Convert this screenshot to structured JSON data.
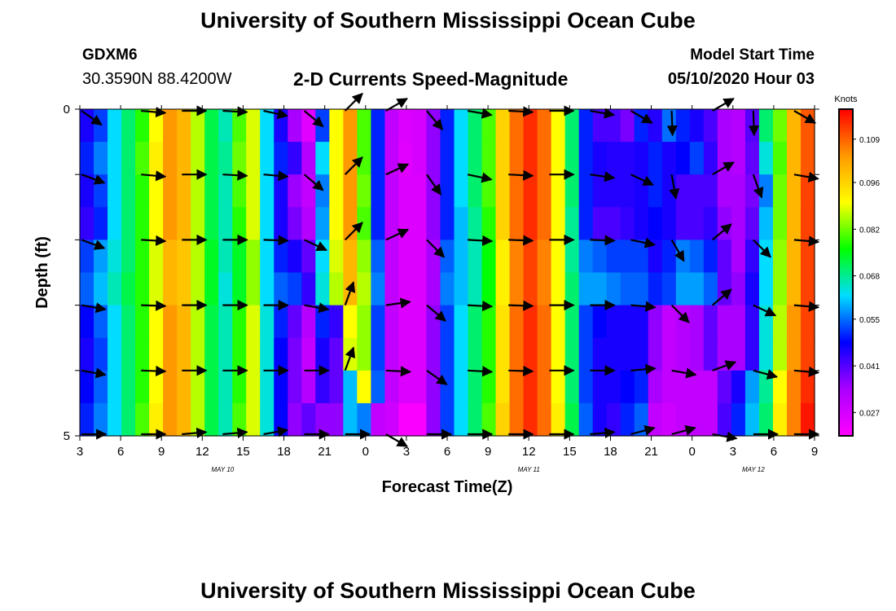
{
  "header": {
    "title": "University of Southern Mississippi Ocean Cube",
    "station_id": "GDXM6",
    "coordinates": "30.3590N 88.4200W",
    "subtitle": "2-D Currents Speed-Magnitude",
    "model_start_label": "Model Start Time",
    "model_start_value": "05/10/2020 Hour 03"
  },
  "footer": {
    "title": "University of Southern Mississippi Ocean Cube"
  },
  "chart_data": {
    "type": "heatmap",
    "title": "2-D Currents Speed-Magnitude",
    "xlabel": "Forecast Time(Z)",
    "ylabel": "Depth (ft)",
    "x_hours_since_start": {
      "min": 0,
      "max": 54
    },
    "ylim": [
      0,
      5
    ],
    "y_tick_labels": [
      {
        "value": 0,
        "label": "0"
      },
      {
        "value": 5,
        "label": "5"
      }
    ],
    "y_minor_ticks": [
      1,
      2,
      3,
      4
    ],
    "x_ticks": [
      {
        "hour": 0,
        "label": "3"
      },
      {
        "hour": 3,
        "label": "6"
      },
      {
        "hour": 6,
        "label": "9"
      },
      {
        "hour": 9,
        "label": "12"
      },
      {
        "hour": 12,
        "label": "15"
      },
      {
        "hour": 15,
        "label": "18"
      },
      {
        "hour": 18,
        "label": "21"
      },
      {
        "hour": 21,
        "label": "0"
      },
      {
        "hour": 24,
        "label": "3"
      },
      {
        "hour": 27,
        "label": "6"
      },
      {
        "hour": 30,
        "label": "9"
      },
      {
        "hour": 33,
        "label": "12"
      },
      {
        "hour": 36,
        "label": "15"
      },
      {
        "hour": 39,
        "label": "18"
      },
      {
        "hour": 42,
        "label": "21"
      },
      {
        "hour": 45,
        "label": "0"
      },
      {
        "hour": 48,
        "label": "3"
      },
      {
        "hour": 51,
        "label": "6"
      },
      {
        "hour": 54,
        "label": "9"
      }
    ],
    "date_labels": [
      {
        "hour": 10.5,
        "label": "MAY 10"
      },
      {
        "hour": 33,
        "label": "MAY 11"
      },
      {
        "hour": 49.5,
        "label": "MAY 12"
      }
    ],
    "colorbar": {
      "label": "Knots",
      "min": 0.02,
      "max": 0.118,
      "ticks": [
        0.027,
        0.041,
        0.055,
        0.068,
        0.082,
        0.096,
        0.109
      ],
      "tick_labels": [
        "0.027",
        "0.041",
        "0.055",
        "0.068",
        "0.082",
        "0.096",
        "0.109"
      ],
      "colors": [
        "#ff00ff",
        "#aa00ff",
        "#0000ff",
        "#00ddff",
        "#00ff00",
        "#ffff00",
        "#ff9900",
        "#ff0000"
      ]
    },
    "depth_rows": [
      0.25,
      0.75,
      1.25,
      1.75,
      2.25,
      2.75,
      3.25,
      3.75,
      4.25,
      4.75
    ],
    "speed_grid": [
      [
        0.046,
        0.052,
        0.062,
        0.07,
        0.078,
        0.09,
        0.104,
        0.1,
        0.086,
        0.072,
        0.066,
        0.08,
        0.088,
        0.062,
        0.046,
        0.034,
        0.025,
        0.052,
        0.09,
        0.104,
        0.08,
        0.05,
        0.03,
        0.026,
        0.027,
        0.036,
        0.05,
        0.062,
        0.07,
        0.08,
        0.096,
        0.108,
        0.114,
        0.108,
        0.09,
        0.07,
        0.05,
        0.042,
        0.042,
        0.038,
        0.05,
        0.045,
        0.055,
        0.05,
        0.046,
        0.042,
        0.034,
        0.032,
        0.041,
        0.07,
        0.082,
        0.1,
        0.11
      ],
      [
        0.05,
        0.056,
        0.062,
        0.07,
        0.08,
        0.092,
        0.104,
        0.1,
        0.086,
        0.072,
        0.068,
        0.082,
        0.088,
        0.062,
        0.05,
        0.044,
        0.032,
        0.062,
        0.09,
        0.104,
        0.08,
        0.05,
        0.03,
        0.025,
        0.027,
        0.036,
        0.05,
        0.062,
        0.07,
        0.08,
        0.096,
        0.108,
        0.114,
        0.108,
        0.09,
        0.07,
        0.05,
        0.046,
        0.045,
        0.045,
        0.046,
        0.05,
        0.046,
        0.048,
        0.052,
        0.044,
        0.034,
        0.032,
        0.04,
        0.064,
        0.08,
        0.1,
        0.11
      ],
      [
        0.046,
        0.052,
        0.062,
        0.07,
        0.078,
        0.09,
        0.104,
        0.1,
        0.086,
        0.072,
        0.066,
        0.08,
        0.088,
        0.062,
        0.046,
        0.035,
        0.03,
        0.056,
        0.09,
        0.104,
        0.082,
        0.05,
        0.03,
        0.026,
        0.026,
        0.036,
        0.05,
        0.062,
        0.07,
        0.08,
        0.096,
        0.108,
        0.114,
        0.108,
        0.09,
        0.07,
        0.05,
        0.045,
        0.045,
        0.045,
        0.046,
        0.05,
        0.046,
        0.042,
        0.042,
        0.042,
        0.034,
        0.034,
        0.038,
        0.056,
        0.082,
        0.1,
        0.112
      ],
      [
        0.044,
        0.05,
        0.062,
        0.07,
        0.078,
        0.09,
        0.104,
        0.1,
        0.086,
        0.072,
        0.066,
        0.078,
        0.088,
        0.062,
        0.046,
        0.038,
        0.032,
        0.058,
        0.09,
        0.104,
        0.08,
        0.05,
        0.03,
        0.026,
        0.026,
        0.036,
        0.05,
        0.06,
        0.068,
        0.078,
        0.096,
        0.108,
        0.114,
        0.108,
        0.09,
        0.068,
        0.05,
        0.042,
        0.042,
        0.044,
        0.046,
        0.048,
        0.046,
        0.042,
        0.042,
        0.044,
        0.036,
        0.034,
        0.04,
        0.06,
        0.082,
        0.1,
        0.112
      ],
      [
        0.052,
        0.058,
        0.064,
        0.07,
        0.078,
        0.088,
        0.1,
        0.098,
        0.086,
        0.074,
        0.066,
        0.074,
        0.084,
        0.062,
        0.05,
        0.046,
        0.04,
        0.062,
        0.088,
        0.1,
        0.084,
        0.054,
        0.03,
        0.026,
        0.026,
        0.034,
        0.054,
        0.06,
        0.066,
        0.076,
        0.092,
        0.106,
        0.112,
        0.106,
        0.09,
        0.068,
        0.056,
        0.054,
        0.052,
        0.052,
        0.052,
        0.046,
        0.05,
        0.056,
        0.054,
        0.05,
        0.04,
        0.034,
        0.044,
        0.062,
        0.084,
        0.1,
        0.112
      ],
      [
        0.054,
        0.06,
        0.066,
        0.072,
        0.078,
        0.088,
        0.1,
        0.098,
        0.086,
        0.074,
        0.064,
        0.074,
        0.084,
        0.062,
        0.054,
        0.052,
        0.044,
        0.064,
        0.086,
        0.1,
        0.086,
        0.056,
        0.03,
        0.026,
        0.026,
        0.034,
        0.056,
        0.06,
        0.066,
        0.076,
        0.092,
        0.106,
        0.112,
        0.106,
        0.09,
        0.07,
        0.058,
        0.058,
        0.056,
        0.054,
        0.054,
        0.05,
        0.052,
        0.058,
        0.058,
        0.054,
        0.04,
        0.036,
        0.046,
        0.062,
        0.084,
        0.1,
        0.112
      ],
      [
        0.048,
        0.054,
        0.062,
        0.07,
        0.078,
        0.09,
        0.104,
        0.1,
        0.086,
        0.072,
        0.066,
        0.078,
        0.088,
        0.064,
        0.05,
        0.04,
        0.032,
        0.05,
        0.044,
        0.09,
        0.084,
        0.052,
        0.03,
        0.026,
        0.026,
        0.036,
        0.052,
        0.062,
        0.07,
        0.078,
        0.094,
        0.108,
        0.114,
        0.108,
        0.09,
        0.07,
        0.052,
        0.048,
        0.046,
        0.046,
        0.046,
        0.036,
        0.03,
        0.032,
        0.034,
        0.04,
        0.034,
        0.034,
        0.044,
        0.064,
        0.086,
        0.104,
        0.112
      ],
      [
        0.046,
        0.052,
        0.062,
        0.07,
        0.078,
        0.09,
        0.104,
        0.1,
        0.086,
        0.072,
        0.066,
        0.078,
        0.088,
        0.064,
        0.048,
        0.038,
        0.03,
        0.046,
        0.04,
        0.088,
        0.084,
        0.052,
        0.03,
        0.026,
        0.026,
        0.036,
        0.052,
        0.062,
        0.07,
        0.078,
        0.094,
        0.108,
        0.114,
        0.108,
        0.09,
        0.07,
        0.052,
        0.046,
        0.046,
        0.046,
        0.046,
        0.036,
        0.03,
        0.032,
        0.034,
        0.04,
        0.034,
        0.034,
        0.044,
        0.064,
        0.086,
        0.104,
        0.112
      ],
      [
        0.048,
        0.054,
        0.062,
        0.07,
        0.078,
        0.09,
        0.104,
        0.1,
        0.086,
        0.072,
        0.066,
        0.078,
        0.088,
        0.064,
        0.048,
        0.038,
        0.032,
        0.044,
        0.04,
        0.06,
        0.09,
        0.054,
        0.03,
        0.026,
        0.026,
        0.036,
        0.052,
        0.062,
        0.07,
        0.078,
        0.094,
        0.108,
        0.114,
        0.108,
        0.09,
        0.07,
        0.052,
        0.046,
        0.046,
        0.048,
        0.05,
        0.034,
        0.03,
        0.03,
        0.03,
        0.03,
        0.04,
        0.046,
        0.058,
        0.068,
        0.09,
        0.106,
        0.114
      ],
      [
        0.05,
        0.056,
        0.062,
        0.07,
        0.08,
        0.092,
        0.104,
        0.1,
        0.086,
        0.072,
        0.066,
        0.08,
        0.088,
        0.064,
        0.048,
        0.036,
        0.04,
        0.036,
        0.036,
        0.06,
        0.056,
        0.03,
        0.028,
        0.021,
        0.021,
        0.036,
        0.052,
        0.062,
        0.07,
        0.08,
        0.096,
        0.108,
        0.114,
        0.108,
        0.092,
        0.072,
        0.054,
        0.046,
        0.044,
        0.05,
        0.054,
        0.03,
        0.028,
        0.03,
        0.03,
        0.03,
        0.042,
        0.05,
        0.06,
        0.07,
        0.092,
        0.106,
        0.116
      ]
    ],
    "vector_field": {
      "x_hours": [
        0,
        4.5,
        7.5,
        10.5,
        13.5,
        16.5,
        19.5,
        22.5,
        25.5,
        28.5,
        31.5,
        34.5,
        37.5,
        40.5,
        43.5,
        46.5,
        49.5,
        52.5
      ],
      "depths": [
        0,
        1,
        2,
        3,
        4,
        5
      ],
      "directions_deg": [
        [
          -35,
          -5,
          0,
          -3,
          -12,
          -40,
          45,
          30,
          -50,
          -10,
          -3,
          0,
          -10,
          -30,
          -88,
          30,
          -88,
          -30
        ],
        [
          -20,
          -5,
          0,
          -3,
          -5,
          -40,
          45,
          25,
          -55,
          -12,
          -3,
          0,
          -8,
          -25,
          -80,
          30,
          -70,
          -10
        ],
        [
          -20,
          -3,
          0,
          0,
          -2,
          -25,
          45,
          25,
          -45,
          -3,
          -2,
          0,
          -2,
          -12,
          -60,
          40,
          -45,
          -5
        ],
        [
          -10,
          -2,
          0,
          0,
          0,
          -10,
          70,
          8,
          -40,
          -3,
          -2,
          0,
          0,
          -5,
          -45,
          40,
          -25,
          -5
        ],
        [
          -10,
          -2,
          0,
          0,
          0,
          0,
          70,
          -3,
          -35,
          -3,
          -2,
          0,
          0,
          5,
          -10,
          20,
          -15,
          -5
        ],
        [
          0,
          0,
          5,
          5,
          10,
          0,
          0,
          -30,
          0,
          0,
          0,
          0,
          5,
          15,
          15,
          -10,
          0,
          0
        ]
      ]
    }
  }
}
